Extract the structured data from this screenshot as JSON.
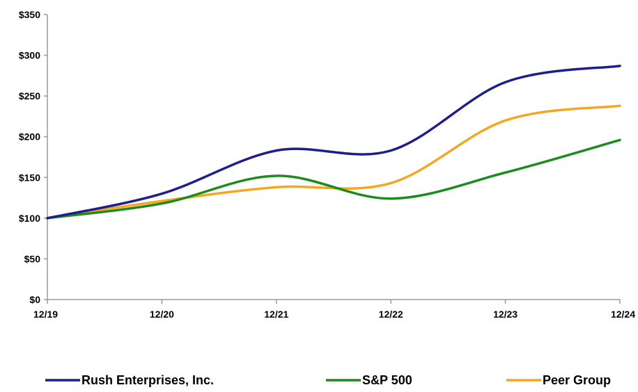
{
  "chart_data": {
    "type": "line",
    "categories": [
      "12/19",
      "12/20",
      "12/21",
      "12/22",
      "12/23",
      "12/24"
    ],
    "series": [
      {
        "name": "Rush Enterprises, Inc.",
        "color": "#1f1f8c",
        "values": [
          100,
          130,
          183,
          183,
          267,
          287
        ]
      },
      {
        "name": "S&P 500",
        "color": "#1f8a1f",
        "values": [
          100,
          118,
          152,
          124,
          156,
          196
        ]
      },
      {
        "name": "Peer Group",
        "color": "#f5a623",
        "values": [
          100,
          121,
          138,
          143,
          220,
          238
        ]
      }
    ],
    "y_ticks": [
      0,
      50,
      100,
      150,
      200,
      250,
      300,
      350
    ],
    "y_tick_labels": [
      "$0",
      "$50",
      "$100",
      "$150",
      "$200",
      "$250",
      "$300",
      "$350"
    ],
    "ylim": [
      0,
      350
    ],
    "grid": false,
    "legend_position": "bottom",
    "title": "",
    "xlabel": "",
    "ylabel": ""
  }
}
